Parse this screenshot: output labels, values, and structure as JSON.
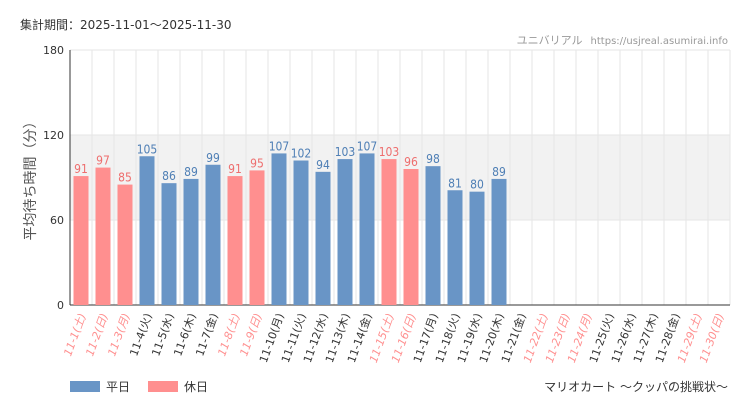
{
  "header": {
    "period_label": "集計期間：2025-11-01～2025-11-30",
    "brand": "ユニバリアル",
    "url": "https://usjreal.asumirai.info"
  },
  "footer": {
    "attraction": "マリオカート ～クッパの挑戦状～"
  },
  "colors": {
    "weekday": "#6995c6",
    "weekday_label": "#4f7fb5",
    "holiday": "#ff8f8f",
    "holiday_label": "#ee6e6e",
    "band": "#f2f2f2",
    "grid": "#e6e6e6",
    "axis": "#333333"
  },
  "chart_data": {
    "type": "bar",
    "title": "",
    "xlabel": "",
    "ylabel": "平均待ち時間（分）",
    "ylim": [
      0,
      180
    ],
    "yticks": [
      0,
      60,
      120,
      180
    ],
    "band": [
      60,
      120
    ],
    "legend": [
      {
        "key": "weekday",
        "label": "平日"
      },
      {
        "key": "holiday",
        "label": "休日"
      }
    ],
    "categories": [
      "11-1(土)",
      "11-2(日)",
      "11-3(月)",
      "11-4(火)",
      "11-5(水)",
      "11-6(木)",
      "11-7(金)",
      "11-8(土)",
      "11-9(日)",
      "11-10(月)",
      "11-11(火)",
      "11-12(水)",
      "11-13(木)",
      "11-14(金)",
      "11-15(土)",
      "11-16(日)",
      "11-17(月)",
      "11-18(火)",
      "11-19(水)",
      "11-20(木)",
      "11-21(金)",
      "11-22(土)",
      "11-23(日)",
      "11-24(月)",
      "11-25(火)",
      "11-26(水)",
      "11-27(木)",
      "11-28(金)",
      "11-29(土)",
      "11-30(日)"
    ],
    "values": [
      91,
      97,
      85,
      105,
      86,
      89,
      99,
      91,
      95,
      107,
      102,
      94,
      103,
      107,
      103,
      96,
      98,
      81,
      80,
      89,
      null,
      null,
      null,
      null,
      null,
      null,
      null,
      null,
      null,
      null
    ],
    "day_type": [
      "holiday",
      "holiday",
      "holiday",
      "weekday",
      "weekday",
      "weekday",
      "weekday",
      "holiday",
      "holiday",
      "weekday",
      "weekday",
      "weekday",
      "weekday",
      "weekday",
      "holiday",
      "holiday",
      "weekday",
      "weekday",
      "weekday",
      "weekday",
      "weekday",
      "holiday",
      "holiday",
      "holiday",
      "weekday",
      "weekday",
      "weekday",
      "weekday",
      "holiday",
      "holiday"
    ]
  }
}
